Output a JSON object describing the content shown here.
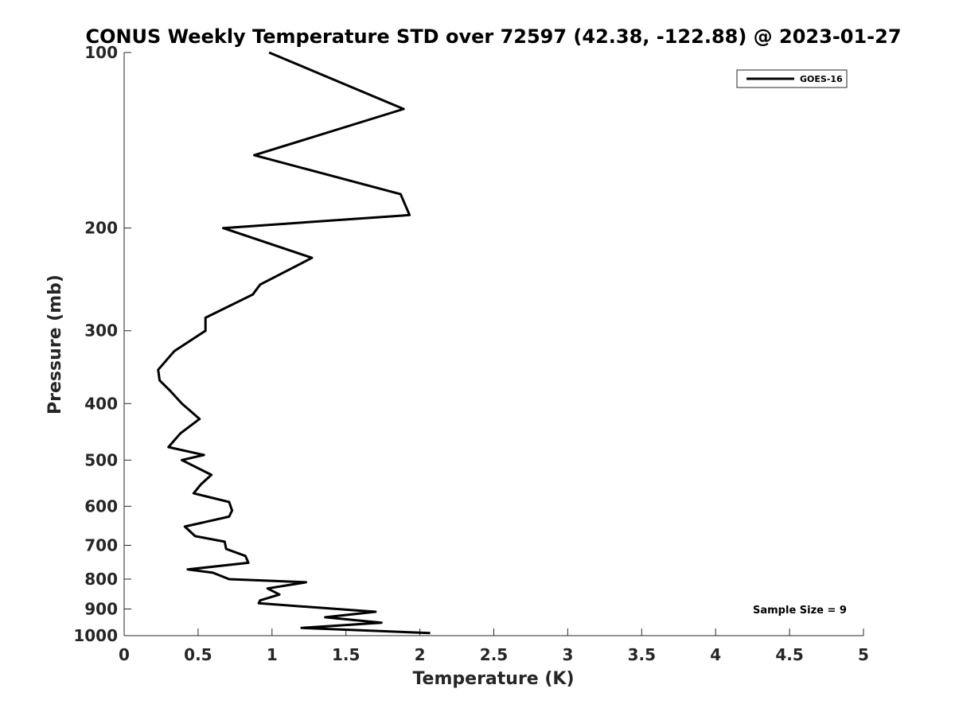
{
  "chart_data": {
    "type": "line",
    "title": "CONUS Weekly Temperature STD over 72597 (42.38, -122.88) @ 2023-01-27",
    "xlabel": "Temperature (K)",
    "ylabel": "Pressure (mb)",
    "xlim": [
      0,
      5
    ],
    "ylim": [
      1000,
      100
    ],
    "y_scale": "log",
    "y_reversed": true,
    "grid": false,
    "legend_position": "top-right",
    "xticks": [
      0,
      0.5,
      1,
      1.5,
      2,
      2.5,
      3,
      3.5,
      4,
      4.5,
      5
    ],
    "xtick_labels": [
      "0",
      "0.5",
      "1",
      "1.5",
      "2",
      "2.5",
      "3",
      "3.5",
      "4",
      "4.5",
      "5"
    ],
    "yticks": [
      100,
      200,
      300,
      400,
      500,
      600,
      700,
      800,
      900,
      1000
    ],
    "ytick_labels": [
      "100",
      "200",
      "300",
      "400",
      "500",
      "600",
      "700",
      "800",
      "900",
      "1000"
    ],
    "series": [
      {
        "name": "GOES-16",
        "color": "#000000",
        "points": [
          [
            0.98,
            100
          ],
          [
            1.89,
            125
          ],
          [
            0.88,
            150
          ],
          [
            1.87,
            175
          ],
          [
            1.93,
            190
          ],
          [
            0.67,
            200
          ],
          [
            1.27,
            225
          ],
          [
            0.92,
            250
          ],
          [
            0.87,
            260
          ],
          [
            0.55,
            285
          ],
          [
            0.55,
            300
          ],
          [
            0.34,
            325
          ],
          [
            0.23,
            350
          ],
          [
            0.24,
            365
          ],
          [
            0.31,
            380
          ],
          [
            0.39,
            400
          ],
          [
            0.51,
            425
          ],
          [
            0.38,
            450
          ],
          [
            0.3,
            475
          ],
          [
            0.54,
            490
          ],
          [
            0.39,
            500
          ],
          [
            0.59,
            530
          ],
          [
            0.52,
            550
          ],
          [
            0.47,
            570
          ],
          [
            0.71,
            590
          ],
          [
            0.73,
            610
          ],
          [
            0.71,
            625
          ],
          [
            0.41,
            650
          ],
          [
            0.48,
            675
          ],
          [
            0.68,
            690
          ],
          [
            0.69,
            710
          ],
          [
            0.82,
            730
          ],
          [
            0.84,
            750
          ],
          [
            0.43,
            770
          ],
          [
            0.6,
            780
          ],
          [
            0.71,
            800
          ],
          [
            1.23,
            810
          ],
          [
            0.97,
            830
          ],
          [
            1.05,
            850
          ],
          [
            0.92,
            870
          ],
          [
            0.91,
            880
          ],
          [
            1.7,
            910
          ],
          [
            1.36,
            930
          ],
          [
            1.74,
            950
          ],
          [
            1.2,
            970
          ],
          [
            2.07,
            990
          ]
        ]
      }
    ],
    "annotation": "Sample Size = 9"
  }
}
